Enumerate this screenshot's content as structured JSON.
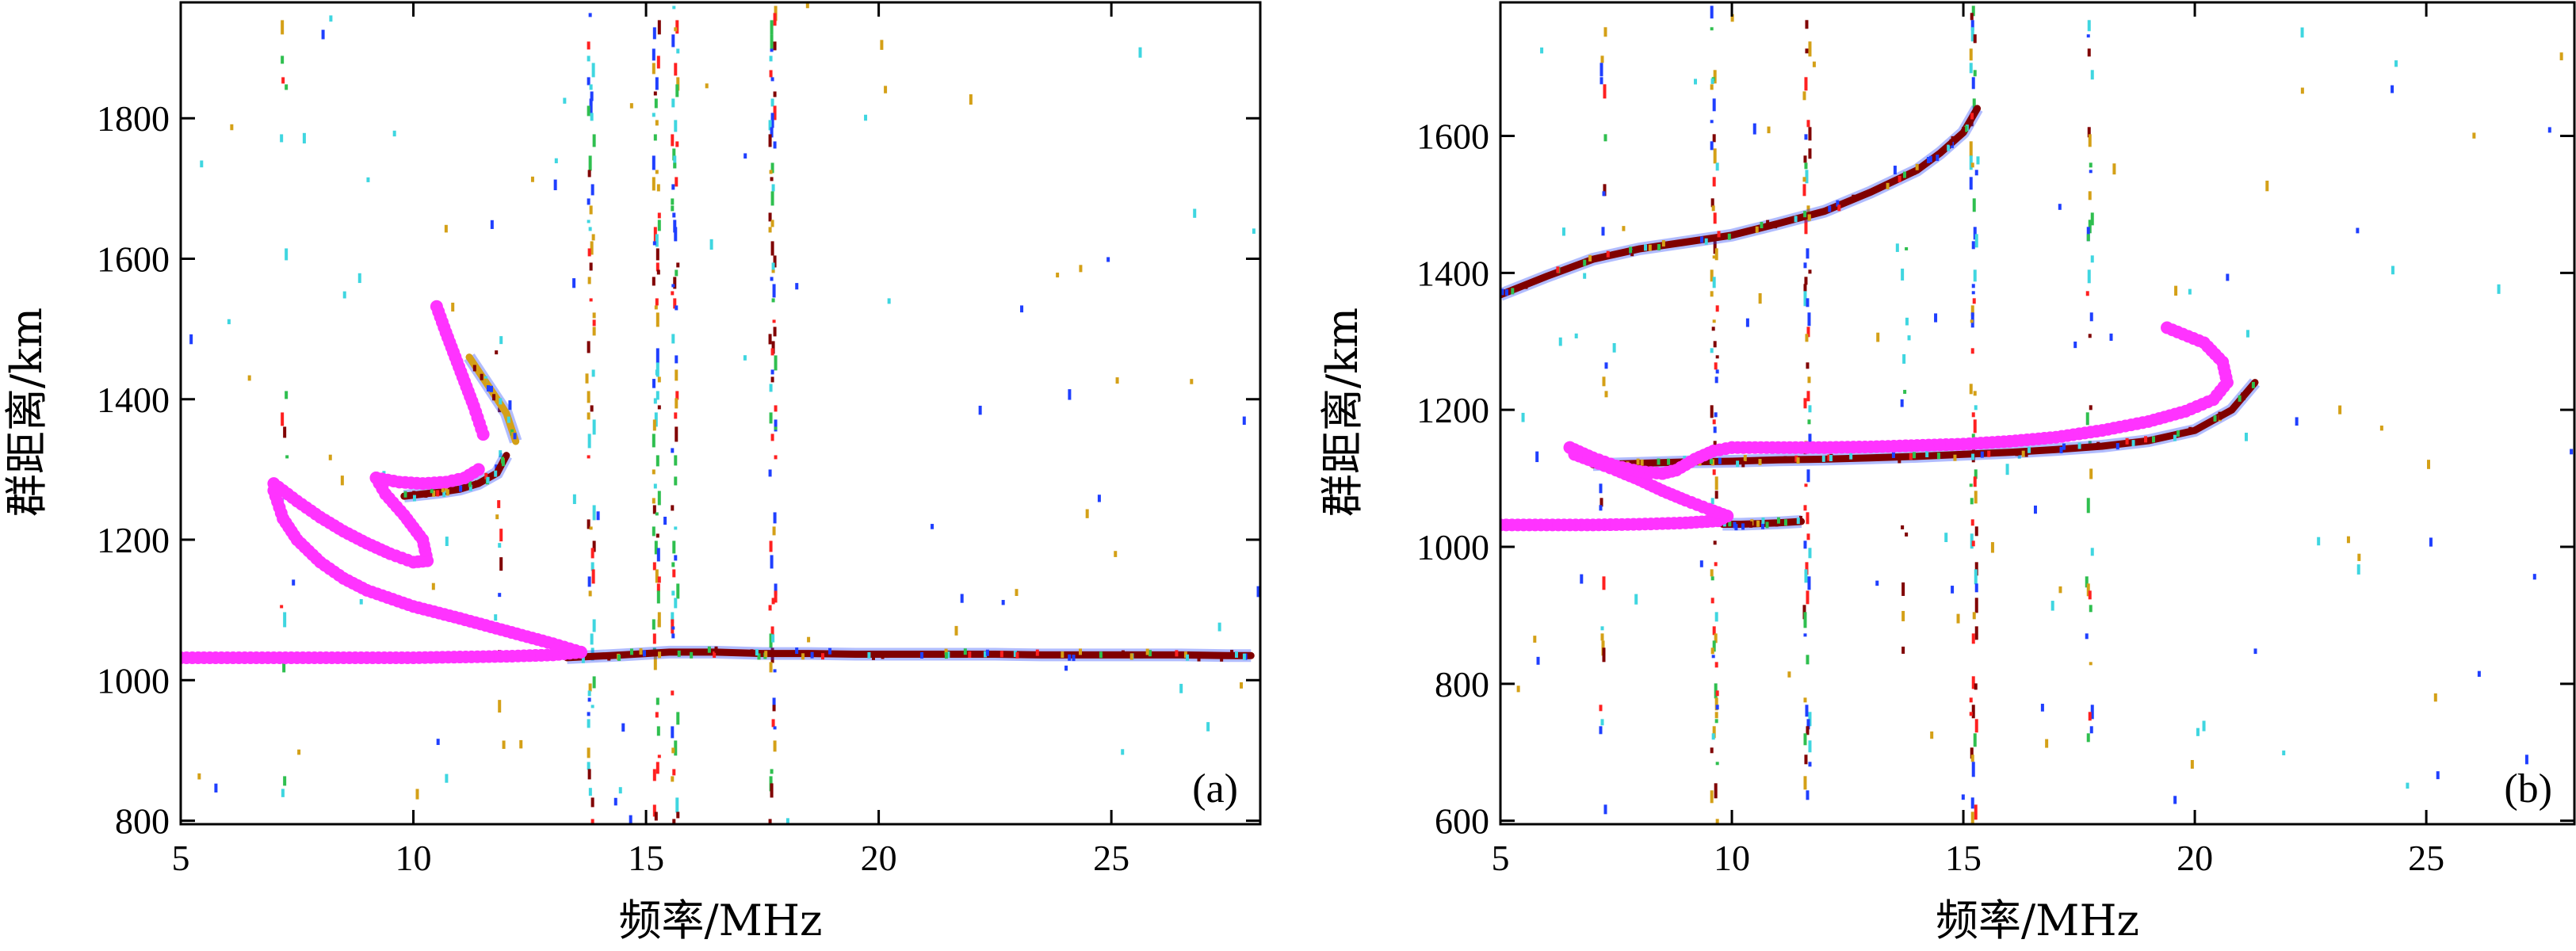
{
  "chart_data": [
    {
      "type": "scatter",
      "panel_label": "(a)",
      "xlabel": "频率/MHz",
      "ylabel": "群距离/km",
      "xlim": [
        5,
        28.2
      ],
      "ylim": [
        795,
        1965
      ],
      "xticks": [
        5,
        10,
        15,
        20,
        25
      ],
      "yticks": [
        800,
        1000,
        1200,
        1400,
        1600,
        1800
      ],
      "grid": false,
      "colors": {
        "trace": "#ff33ff",
        "echo_strong": "#800000",
        "echo_mid": "#d4a017",
        "echo_low": "#1f3fff",
        "echo_cyan": "#3fd6e0"
      },
      "vertical_bands": [
        {
          "x": 7.2,
          "ymin": 800,
          "ymax": 1960,
          "density": 0.15
        },
        {
          "x": 11.8,
          "ymin": 950,
          "ymax": 1500,
          "density": 0.25
        },
        {
          "x": 13.8,
          "ymin": 800,
          "ymax": 1960,
          "density": 0.55
        },
        {
          "x": 15.2,
          "ymin": 800,
          "ymax": 1960,
          "density": 0.6
        },
        {
          "x": 15.6,
          "ymin": 800,
          "ymax": 1960,
          "density": 0.6
        },
        {
          "x": 17.7,
          "ymin": 800,
          "ymax": 1960,
          "density": 0.5
        }
      ],
      "echo_traces": [
        {
          "name": "",
          "x": [
            13.3,
            14.5,
            15.5,
            16.5,
            17.5,
            18.5,
            19.5,
            20.5,
            21.5,
            22.5,
            23.5,
            24.5,
            25.5,
            26.5,
            27.5,
            28
          ],
          "y": [
            1032,
            1036,
            1040,
            1040,
            1038,
            1038,
            1037,
            1037,
            1037,
            1037,
            1036,
            1036,
            1036,
            1036,
            1035,
            1035
          ],
          "style": "strong"
        },
        {
          "name": "",
          "x": [
            9.8,
            10.2,
            10.6,
            11.0,
            11.4,
            11.8,
            12.0
          ],
          "y": [
            1262,
            1265,
            1268,
            1272,
            1280,
            1295,
            1320
          ],
          "style": "strong"
        },
        {
          "name": "",
          "x": [
            11.2,
            11.6,
            12.0,
            12.2
          ],
          "y": [
            1460,
            1420,
            1380,
            1340
          ],
          "style": "mid"
        }
      ],
      "model_traces": [
        {
          "x": [
            5.0,
            6.0,
            7.0,
            8.0,
            9.0,
            10.0,
            11.0,
            12.0,
            13.0,
            13.6
          ],
          "y": [
            1032,
            1032,
            1032,
            1032,
            1032,
            1032,
            1033,
            1034,
            1036,
            1040
          ]
        },
        {
          "x": [
            13.6,
            13.0,
            12.0,
            11.0,
            10.0,
            9.0,
            8.5,
            8.0,
            7.5,
            7.2,
            7.0
          ],
          "y": [
            1040,
            1052,
            1070,
            1088,
            1105,
            1128,
            1145,
            1168,
            1200,
            1230,
            1270
          ]
        },
        {
          "x": [
            7.0,
            7.5,
            8.0,
            8.5,
            9.0,
            9.5,
            10.0,
            10.3,
            10.2,
            9.8,
            9.4,
            9.2
          ],
          "y": [
            1280,
            1255,
            1232,
            1212,
            1195,
            1180,
            1168,
            1170,
            1200,
            1235,
            1265,
            1288
          ]
        },
        {
          "x": [
            9.2,
            9.7,
            10.2,
            10.7,
            11.1,
            11.4
          ],
          "y": [
            1288,
            1282,
            1280,
            1282,
            1288,
            1300
          ]
        },
        {
          "x": [
            10.5,
            10.7,
            10.9,
            11.1,
            11.3,
            11.5
          ],
          "y": [
            1532,
            1495,
            1460,
            1425,
            1390,
            1350
          ]
        }
      ]
    },
    {
      "type": "scatter",
      "panel_label": "(b)",
      "xlabel": "频率/MHz",
      "ylabel": "群距离/km",
      "xlim": [
        5,
        28.2
      ],
      "ylim": [
        595,
        1795
      ],
      "xticks": [
        5,
        10,
        15,
        20,
        25
      ],
      "yticks": [
        600,
        800,
        1000,
        1200,
        1400,
        1600
      ],
      "grid": false,
      "colors": {
        "trace": "#ff33ff",
        "echo_strong": "#800000",
        "echo_mid": "#d4a017",
        "echo_low": "#1f3fff",
        "echo_cyan": "#3fd6e0"
      },
      "vertical_bands": [
        {
          "x": 7.2,
          "ymin": 600,
          "ymax": 1790,
          "density": 0.2
        },
        {
          "x": 9.6,
          "ymin": 600,
          "ymax": 1790,
          "density": 0.6
        },
        {
          "x": 11.6,
          "ymin": 600,
          "ymax": 1790,
          "density": 0.55
        },
        {
          "x": 13.7,
          "ymin": 800,
          "ymax": 1500,
          "density": 0.15
        },
        {
          "x": 15.2,
          "ymin": 600,
          "ymax": 1790,
          "density": 0.55
        },
        {
          "x": 17.7,
          "ymin": 650,
          "ymax": 1790,
          "density": 0.35
        }
      ],
      "echo_traces": [
        {
          "name": "",
          "x": [
            5.0,
            6.0,
            7.0,
            8.0,
            9.0,
            10.0,
            11.0,
            12.0,
            13.0,
            14.0,
            14.5,
            15.0,
            15.3
          ],
          "y": [
            1368,
            1395,
            1420,
            1435,
            1445,
            1455,
            1472,
            1490,
            1518,
            1550,
            1575,
            1605,
            1640
          ],
          "style": "strong"
        },
        {
          "name": "",
          "x": [
            7.0,
            8.0,
            9.0,
            10.0,
            11.0,
            12.0,
            13.0,
            14.0,
            15.0,
            16.0,
            17.0,
            18.0,
            19.0,
            20.0,
            20.8,
            21.3
          ],
          "y": [
            1120,
            1122,
            1124,
            1125,
            1127,
            1128,
            1130,
            1132,
            1135,
            1138,
            1142,
            1147,
            1155,
            1170,
            1200,
            1240
          ],
          "style": "strong"
        },
        {
          "name": "",
          "x": [
            9.8,
            10.2,
            10.6,
            11.0,
            11.5
          ],
          "y": [
            1033,
            1033,
            1034,
            1035,
            1037
          ],
          "style": "strong"
        }
      ],
      "model_traces": [
        {
          "x": [
            5.0,
            6.0,
            7.0,
            8.0,
            9.0,
            9.7,
            9.9
          ],
          "y": [
            1032,
            1032,
            1032,
            1033,
            1035,
            1038,
            1045
          ]
        },
        {
          "x": [
            9.9,
            9.5,
            9.0,
            8.5,
            8.0,
            7.5,
            7.0,
            6.6,
            6.5
          ],
          "y": [
            1045,
            1055,
            1068,
            1082,
            1098,
            1112,
            1125,
            1135,
            1145
          ]
        },
        {
          "x": [
            6.5,
            7.0,
            7.5,
            8.0,
            8.5,
            8.8,
            9.2,
            9.6,
            10.0
          ],
          "y": [
            1145,
            1130,
            1118,
            1110,
            1107,
            1112,
            1128,
            1140,
            1145
          ]
        },
        {
          "x": [
            10.0,
            11.0,
            12.0,
            13.0,
            14.0,
            15.0,
            16.0,
            17.0,
            18.0,
            19.0,
            19.8,
            20.4,
            20.7,
            20.6,
            20.2,
            19.4
          ],
          "y": [
            1145,
            1145,
            1145,
            1146,
            1148,
            1150,
            1154,
            1160,
            1170,
            1183,
            1198,
            1215,
            1240,
            1270,
            1298,
            1320
          ]
        }
      ]
    }
  ]
}
